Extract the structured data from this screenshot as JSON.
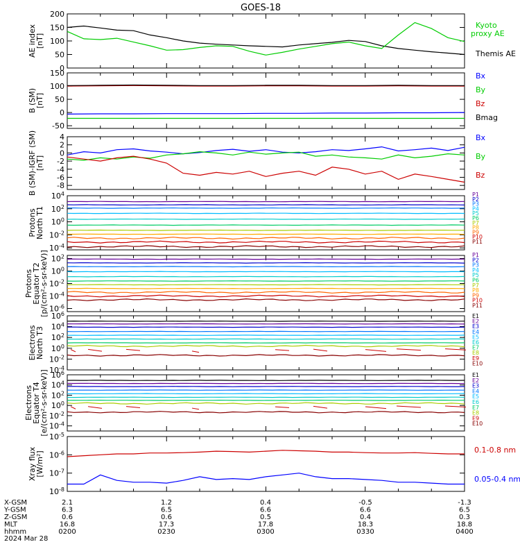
{
  "title": "GOES-18",
  "colors": {
    "black": "#000000",
    "green": "#00cc00",
    "blue": "#0000ff",
    "red": "#cc0000",
    "channels": [
      "#000000",
      "#660099",
      "#0000cc",
      "#0077ff",
      "#00bbff",
      "#00cccc",
      "#00cc66",
      "#aacc00",
      "#ffaa00",
      "#ff6600",
      "#cc0000",
      "#880000"
    ]
  },
  "chart_data": [
    {
      "type": "line",
      "id": "ae",
      "ylabel": "AE index [nT]",
      "ylim": [
        0,
        200
      ],
      "yticks": [
        "0",
        "50",
        "100",
        "150",
        "200"
      ],
      "x": [
        0,
        5,
        10,
        15,
        20,
        25,
        30,
        35,
        40,
        45,
        50,
        55,
        60,
        65,
        70,
        75,
        80,
        85,
        90,
        95,
        100,
        105,
        110,
        115,
        120
      ],
      "series": [
        {
          "name": "Themis AE",
          "color": "#000000",
          "values": [
            150,
            155,
            148,
            140,
            138,
            122,
            112,
            100,
            92,
            88,
            85,
            82,
            80,
            78,
            85,
            90,
            95,
            102,
            98,
            82,
            72,
            66,
            60,
            55,
            50
          ]
        },
        {
          "name": "Kyoto proxy AE",
          "color": "#00cc00",
          "values": [
            135,
            108,
            105,
            110,
            96,
            82,
            66,
            68,
            76,
            82,
            80,
            62,
            48,
            58,
            70,
            80,
            90,
            96,
            82,
            72,
            122,
            168,
            146,
            112,
            98
          ]
        }
      ]
    },
    {
      "type": "line",
      "id": "bsm",
      "ylabel": "B (SM) [nT]",
      "ylim": [
        -60,
        150
      ],
      "yticks": [
        "-50",
        "0",
        "50",
        "100",
        "150"
      ],
      "x": [
        0,
        10,
        20,
        30,
        40,
        50,
        60,
        70,
        80,
        90,
        100,
        110,
        120
      ],
      "series": [
        {
          "name": "Bx",
          "color": "#0000ff",
          "values": [
            -6,
            -5,
            -5,
            -4,
            -4,
            -4,
            -3,
            -3,
            -2,
            -2,
            -1,
            -1,
            0
          ]
        },
        {
          "name": "By",
          "color": "#00cc00",
          "values": [
            -22,
            -22,
            -22,
            -22,
            -22,
            -22,
            -22,
            -22,
            -22,
            -22,
            -22,
            -22,
            -22
          ]
        },
        {
          "name": "Bz",
          "color": "#cc0000",
          "values": [
            100,
            101,
            102,
            101,
            100,
            100,
            101,
            101,
            100,
            100,
            101,
            100,
            100
          ]
        },
        {
          "name": "Bmag",
          "color": "#000000",
          "values": [
            102,
            103,
            104,
            103,
            102,
            102,
            103,
            103,
            102,
            102,
            103,
            102,
            102
          ]
        }
      ]
    },
    {
      "type": "line",
      "id": "bdiff",
      "ylabel": "B (SM)-IGRF (SM) [nT]",
      "ylim": [
        -9,
        4
      ],
      "yticks": [
        "-8",
        "-6",
        "-4",
        "-2",
        "0",
        "2",
        "4"
      ],
      "x": [
        0,
        5,
        10,
        15,
        20,
        25,
        30,
        35,
        40,
        45,
        50,
        55,
        60,
        65,
        70,
        75,
        80,
        85,
        90,
        95,
        100,
        105,
        110,
        115,
        120
      ],
      "series": [
        {
          "name": "Bx",
          "color": "#0000ff",
          "values": [
            -0.5,
            0.3,
            0,
            0.8,
            1,
            0.5,
            0.2,
            -0.2,
            0.1,
            0.6,
            0.9,
            0.4,
            0.8,
            0.2,
            0,
            0.3,
            0.8,
            0.6,
            1,
            1.5,
            0.5,
            0.8,
            1.2,
            0.6,
            1.4
          ]
        },
        {
          "name": "By",
          "color": "#00cc00",
          "values": [
            -1.5,
            -1.8,
            -1.2,
            -1.5,
            -1,
            -1.3,
            -0.5,
            -0.2,
            0.3,
            0,
            -0.5,
            0.2,
            -0.3,
            0,
            0.2,
            -0.8,
            -0.5,
            -1,
            -1.2,
            -1.5,
            -0.5,
            -1.2,
            -0.8,
            -0.2,
            -0.5
          ]
        },
        {
          "name": "Bz",
          "color": "#cc0000",
          "values": [
            -1,
            -1.5,
            -2,
            -1.2,
            -0.8,
            -1.5,
            -2.5,
            -5,
            -5.5,
            -4.8,
            -5.2,
            -4.5,
            -5.8,
            -5,
            -4.5,
            -5.5,
            -3.5,
            -4,
            -5.2,
            -4.5,
            -6.5,
            -5.2,
            -5.8,
            -6.5,
            -7.2
          ]
        }
      ]
    },
    {
      "type": "line",
      "id": "pn",
      "log": true,
      "ylabel": "Protons North T1",
      "ylim": [
        -4.3,
        4
      ],
      "yticks": [
        {
          "e": -4,
          "label": "10-4"
        },
        {
          "e": -2,
          "label": "10-2"
        },
        {
          "e": 0,
          "label": "100"
        },
        {
          "e": 2,
          "label": "102"
        },
        {
          "e": 4,
          "label": "104"
        }
      ],
      "series": [
        {
          "name": "P1",
          "level": 3.1
        },
        {
          "name": "P2",
          "level": 2.6
        },
        {
          "name": "P3",
          "level": 2.1
        },
        {
          "name": "P4",
          "level": 1.3
        },
        {
          "name": "P5",
          "level": 0.4
        },
        {
          "name": "P6",
          "level": -0.5
        },
        {
          "name": "P7",
          "level": -1.3
        },
        {
          "name": "P8",
          "level": -1.9
        },
        {
          "name": "P9",
          "level": -2.5
        },
        {
          "name": "P10",
          "level": -3.1
        },
        {
          "name": "P11",
          "level": -3.8
        }
      ]
    },
    {
      "type": "line",
      "id": "pe",
      "log": true,
      "ylabel": "Protons Equator T2 [p/(cm²-s-sr-keV)]",
      "ylim": [
        -6.5,
        2.5
      ],
      "yticks": [
        {
          "e": -6,
          "label": "10-6"
        },
        {
          "e": -4,
          "label": "10-4"
        },
        {
          "e": -2,
          "label": "10-2"
        },
        {
          "e": 0,
          "label": "100"
        },
        {
          "e": 2,
          "label": "102"
        }
      ],
      "series": [
        {
          "name": "P1",
          "level": 1.9
        },
        {
          "name": "P2",
          "level": 1.3
        },
        {
          "name": "P3",
          "level": 0.7
        },
        {
          "name": "P4",
          "level": -0.1
        },
        {
          "name": "P5",
          "level": -0.9
        },
        {
          "name": "P6",
          "level": -1.6
        },
        {
          "name": "P7",
          "level": -2.2
        },
        {
          "name": "P8",
          "level": -2.8
        },
        {
          "name": "P9",
          "level": -3.4
        },
        {
          "name": "P10",
          "level": -4.0
        },
        {
          "name": "P11",
          "level": -4.6
        }
      ]
    },
    {
      "type": "line",
      "id": "en",
      "log": true,
      "ylabel": "Electrons North T3",
      "ylim": [
        -4,
        6
      ],
      "yticks": [
        {
          "e": -4,
          "label": "10-4"
        },
        {
          "e": -2,
          "label": "10-2"
        },
        {
          "e": 0,
          "label": "100"
        },
        {
          "e": 2,
          "label": "102"
        },
        {
          "e": 4,
          "label": "104"
        },
        {
          "e": 6,
          "label": "106"
        }
      ],
      "series": [
        {
          "name": "E1",
          "level": 5.0
        },
        {
          "name": "E2",
          "level": 4.5
        },
        {
          "name": "E3",
          "level": 3.9
        },
        {
          "name": "E4",
          "level": 3.1
        },
        {
          "name": "E5",
          "level": 2.4
        },
        {
          "name": "E6",
          "level": 1.7
        },
        {
          "name": "E7",
          "level": 1.0
        },
        {
          "name": "E8",
          "level": 0.4
        },
        {
          "name": "E9",
          "level": -0.3
        },
        {
          "name": "E10",
          "level": -1.3
        }
      ]
    },
    {
      "type": "line",
      "id": "ee",
      "log": true,
      "ylabel": "Electrons Equator T4 [e/(cm²-s-sr-keV)]",
      "ylim": [
        -5,
        6
      ],
      "yticks": [
        {
          "e": -4,
          "label": "10-4"
        },
        {
          "e": -2,
          "label": "10-2"
        },
        {
          "e": 0,
          "label": "100"
        },
        {
          "e": 2,
          "label": "102"
        },
        {
          "e": 4,
          "label": "104"
        },
        {
          "e": 6,
          "label": "106"
        }
      ],
      "series": [
        {
          "name": "E1",
          "level": 4.9
        },
        {
          "name": "E2",
          "level": 4.3
        },
        {
          "name": "E3",
          "level": 3.7
        },
        {
          "name": "E4",
          "level": 3.0
        },
        {
          "name": "E5",
          "level": 2.3
        },
        {
          "name": "E6",
          "level": 1.6
        },
        {
          "name": "E7",
          "level": 1.0
        },
        {
          "name": "E8",
          "level": 0.4
        },
        {
          "name": "E9",
          "level": -0.3
        },
        {
          "name": "E10",
          "level": -1.3
        }
      ]
    },
    {
      "type": "line",
      "id": "xray",
      "log": true,
      "ylabel": "Xray flux [W/m²]",
      "ylim": [
        -8,
        -5
      ],
      "yticks": [
        {
          "e": -8,
          "label": "10-8"
        },
        {
          "e": -7,
          "label": "10-7"
        },
        {
          "e": -6,
          "label": "10-6"
        },
        {
          "e": -5,
          "label": "10-5"
        }
      ],
      "x": [
        0,
        5,
        10,
        15,
        20,
        25,
        30,
        35,
        40,
        45,
        50,
        55,
        60,
        65,
        70,
        75,
        80,
        85,
        90,
        95,
        100,
        105,
        110,
        115,
        120
      ],
      "series": [
        {
          "name": "0.1-0.8 nm",
          "color": "#cc0000",
          "values": [
            -6.1,
            -6.05,
            -6.0,
            -5.95,
            -5.95,
            -5.9,
            -5.9,
            -5.88,
            -5.85,
            -5.8,
            -5.82,
            -5.85,
            -5.8,
            -5.75,
            -5.78,
            -5.8,
            -5.85,
            -5.85,
            -5.88,
            -5.9,
            -5.9,
            -5.88,
            -5.92,
            -5.95,
            -5.95
          ]
        },
        {
          "name": "0.05-0.4 nm",
          "color": "#0000ff",
          "values": [
            -7.6,
            -7.6,
            -7.1,
            -7.4,
            -7.5,
            -7.5,
            -7.55,
            -7.4,
            -7.2,
            -7.35,
            -7.3,
            -7.35,
            -7.2,
            -7.1,
            -7.0,
            -7.2,
            -7.3,
            -7.3,
            -7.35,
            -7.4,
            -7.5,
            -7.5,
            -7.55,
            -7.6,
            -7.6
          ]
        }
      ]
    }
  ],
  "xaxis": {
    "labels": [
      "X-GSM",
      "Y-GSM",
      "Z-GSM",
      "MLT",
      "hhmm"
    ],
    "date": "2024 Mar 28",
    "rows": [
      {
        "values": [
          "2.1",
          "1.2",
          "0.4",
          "-0.5",
          "-1.3"
        ]
      },
      {
        "values": [
          "6.3",
          "6.5",
          "6.6",
          "6.6",
          "6.5"
        ]
      },
      {
        "values": [
          "0.6",
          "0.6",
          "0.5",
          "0.4",
          "0.3"
        ]
      },
      {
        "values": [
          "16.8",
          "17.3",
          "17.8",
          "18.3",
          "18.8"
        ]
      },
      {
        "values": [
          "0200",
          "0230",
          "0300",
          "0330",
          "0400"
        ]
      }
    ]
  }
}
